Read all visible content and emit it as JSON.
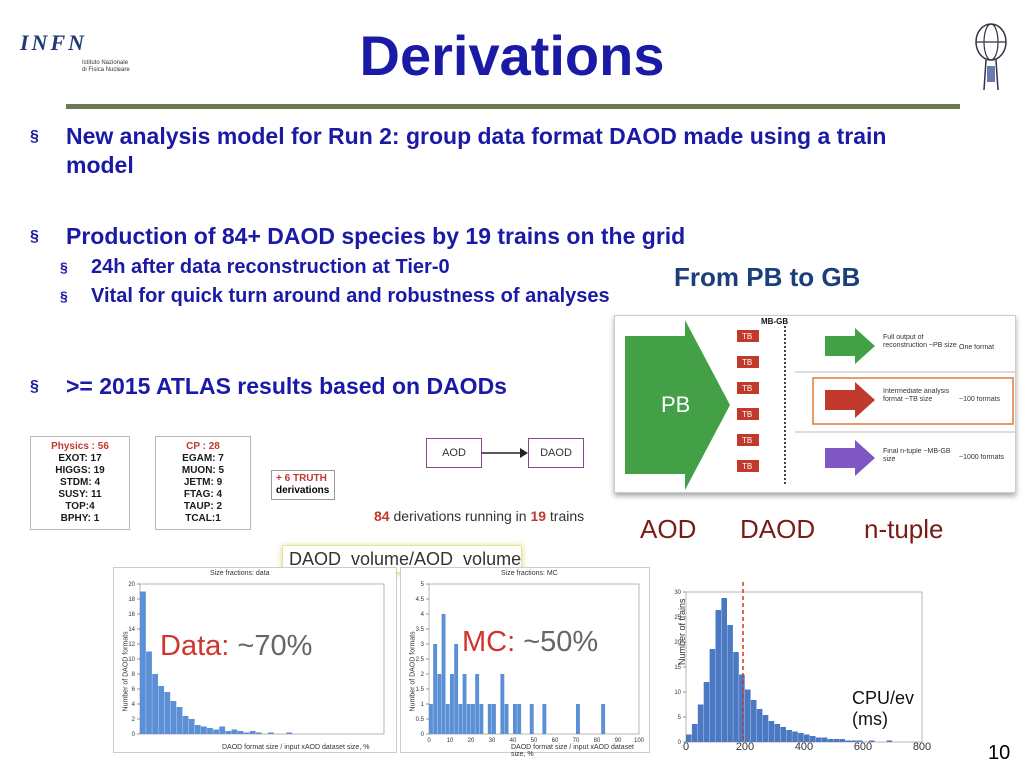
{
  "logos": {
    "infn_mark": "INFN",
    "infn_sub": "Istituto Nazionale di Fisica Nucleare"
  },
  "slide": {
    "title": "Derivations",
    "page_number": "10"
  },
  "bullets": [
    {
      "text": "New analysis model for Run 2: group data format DAOD made using a train model"
    },
    {
      "text": "Production of 84+ DAOD species by 19 trains on the grid",
      "sub": [
        "24h after data reconstruction at Tier-0",
        "Vital for quick turn around and robustness of analyses"
      ]
    },
    {
      "text": ">= 2015 ATLAS results based on DAODs"
    }
  ],
  "bullet_marker": "§",
  "pb_to_gb": {
    "heading": "From PB to GB",
    "mb_gb": "MB-GB",
    "pb_label": "PB",
    "tb_labels": [
      "TB",
      "TB",
      "TB",
      "TB",
      "TB",
      "TB"
    ],
    "rows": [
      {
        "desc": "Full output of reconstruction ~PB size",
        "count": "One format"
      },
      {
        "desc": "Intermediate analysis format ~TB size",
        "count": "~100 formats"
      },
      {
        "desc": "Final n-tuple ~MB-GB size",
        "count": "~1000 formats"
      }
    ],
    "colors": {
      "pb_arrow": "#43a047",
      "row_green": "#43a047",
      "row_red": "#c0392b",
      "row_purple": "#7e57c2",
      "tb_badge": "#c0392b"
    },
    "tiers": [
      "AOD",
      "DAOD",
      "n-tuple"
    ]
  },
  "physics_box": {
    "head": "Physics : 56",
    "lines": [
      "EXOT: 17",
      "HIGGS: 19",
      "STDM: 4",
      "SUSY: 11",
      "TOP:4",
      "BPHY: 1"
    ]
  },
  "cp_box": {
    "head": "CP : 28",
    "lines": [
      "EGAM: 7",
      "MUON: 5",
      "JETM: 9",
      "FTAG: 4",
      "TAUP: 2",
      "TCAL:1"
    ]
  },
  "truth_box": {
    "line1": "+ 6 TRUTH",
    "line2": "derivations"
  },
  "flow": {
    "from": "AOD",
    "to": "DAOD"
  },
  "derivations_line": {
    "n1": "84",
    "t1": " derivations running in ",
    "n2": "19",
    "t2": " trains"
  },
  "ratio_label": "DAOD_volume/AOD_volume",
  "hist_data": {
    "caption": "Size fractions: data",
    "xlabel": "DAOD format size / input xAOD dataset size, %",
    "ylabel": "Number of DAOD formats",
    "label_word": "Data:",
    "label_value": " ~70%",
    "y_ticks": [
      "0",
      "2",
      "4",
      "6",
      "8",
      "10",
      "12",
      "14",
      "16",
      "18",
      "20"
    ]
  },
  "hist_mc": {
    "caption": "Size fractions: MC",
    "xlabel": "DAOD format size / input xAOD dataset size, %",
    "ylabel": "Number of DAOD formats",
    "label_word": "MC:",
    "label_value": " ~50%",
    "y_ticks": [
      "0",
      "0.5",
      "1",
      "1.5",
      "2",
      "2.5",
      "3",
      "3.5",
      "4",
      "4.5",
      "5"
    ],
    "x_ticks": [
      "0",
      "10",
      "20",
      "30",
      "40",
      "50",
      "60",
      "70",
      "80",
      "90",
      "100"
    ]
  },
  "hist_cpu": {
    "ylabel": "Number of trains",
    "y_ticks": [
      "0",
      "5",
      "10",
      "15",
      "20",
      "25",
      "30"
    ],
    "x_ticks": [
      "0",
      "200",
      "400",
      "600",
      "800"
    ],
    "label": "CPU/ev",
    "unit": "(ms)"
  }
}
